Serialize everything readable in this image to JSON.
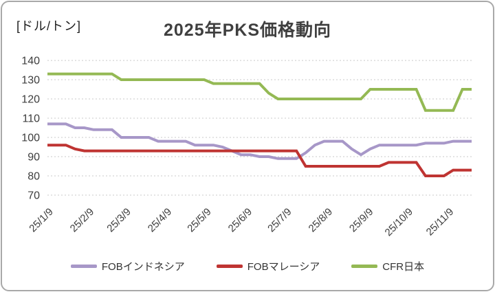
{
  "unit_label": "[ドル/トン]",
  "title": "2025年PKS価格動向",
  "chart_data": {
    "type": "line",
    "title": "2025年PKS価格動向",
    "y_unit_label": "[ドル/トン]",
    "ylabel": "",
    "xlabel": "",
    "ylim": [
      70,
      140
    ],
    "y_ticks": [
      140,
      130,
      120,
      110,
      100,
      90,
      80,
      70
    ],
    "grid": "horizontal-dotted",
    "legend_position": "bottom",
    "x_tick_labels": [
      "25/1/9",
      "25/2/9",
      "25/3/9",
      "25/4/9",
      "25/5/9",
      "25/6/9",
      "25/7/9",
      "25/8/9",
      "25/9/9",
      "25/10/9",
      "25/11/9"
    ],
    "x_tick_day_offsets": [
      0,
      31,
      59,
      90,
      120,
      151,
      181,
      212,
      243,
      273,
      304
    ],
    "point_interval_days": 7,
    "x_domain_days": [
      0,
      322
    ],
    "series": [
      {
        "name": "FOBインドネシア",
        "color": "#a797c8",
        "values": [
          107,
          107,
          107,
          105,
          105,
          104,
          104,
          104,
          100,
          100,
          100,
          100,
          98,
          98,
          98,
          98,
          96,
          96,
          96,
          95,
          93,
          91,
          91,
          90,
          90,
          89,
          89,
          89,
          92,
          96,
          98,
          98,
          98,
          94,
          91,
          94,
          96,
          96,
          96,
          96,
          96,
          97,
          97,
          97,
          98,
          98,
          98
        ]
      },
      {
        "name": "FOBマレーシア",
        "color": "#bf3432",
        "values": [
          96,
          96,
          96,
          94,
          93,
          93,
          93,
          93,
          93,
          93,
          93,
          93,
          93,
          93,
          93,
          93,
          93,
          93,
          93,
          93,
          93,
          93,
          93,
          93,
          93,
          93,
          93,
          93,
          85,
          85,
          85,
          85,
          85,
          85,
          85,
          85,
          85,
          87,
          87,
          87,
          87,
          80,
          80,
          80,
          83,
          83,
          83
        ]
      },
      {
        "name": "CFR日本",
        "color": "#94b954",
        "values": [
          133,
          133,
          133,
          133,
          133,
          133,
          133,
          133,
          130,
          130,
          130,
          130,
          130,
          130,
          130,
          130,
          130,
          130,
          128,
          128,
          128,
          128,
          128,
          128,
          123,
          120,
          120,
          120,
          120,
          120,
          120,
          120,
          120,
          120,
          120,
          125,
          125,
          125,
          125,
          125,
          125,
          114,
          114,
          114,
          114,
          125,
          125
        ]
      }
    ]
  }
}
